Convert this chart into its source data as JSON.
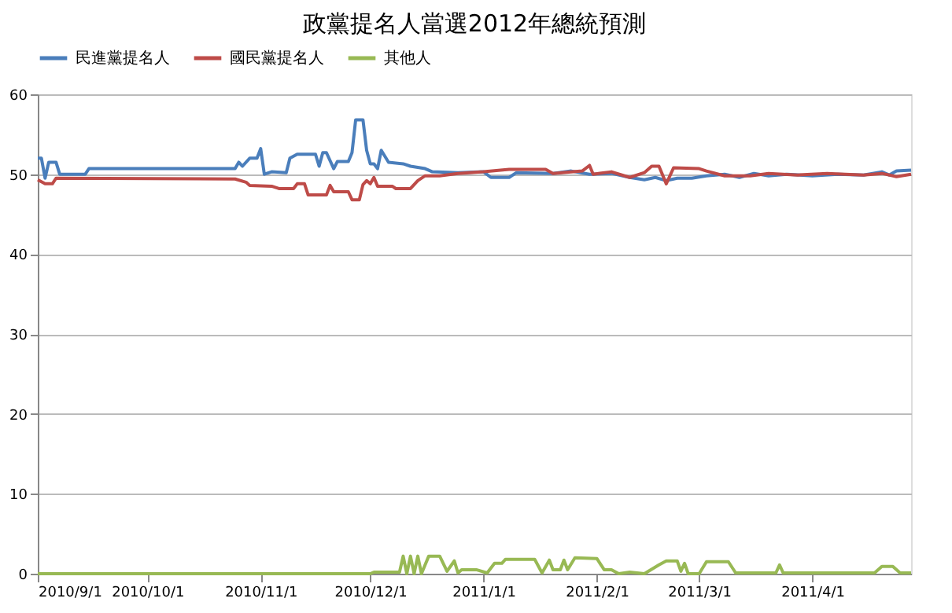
{
  "chart_data": {
    "type": "line",
    "title": "政黨提名人當選2012年總統預測",
    "xlim": [
      "2010-09-01",
      "2011-04-28"
    ],
    "xticks": [
      {
        "value": "2010-09-01",
        "label": "2010/9/1"
      },
      {
        "value": "2010-10-01",
        "label": "2010/10/1"
      },
      {
        "value": "2010-11-01",
        "label": "2010/11/1"
      },
      {
        "value": "2010-12-01",
        "label": "2010/12/1"
      },
      {
        "value": "2011-01-01",
        "label": "2011/1/1"
      },
      {
        "value": "2011-02-01",
        "label": "2011/2/1"
      },
      {
        "value": "2011-03-01",
        "label": "2011/3/1"
      },
      {
        "value": "2011-04-01",
        "label": "2011/4/1"
      }
    ],
    "ylim": [
      0,
      60
    ],
    "yticks": [
      0,
      10,
      20,
      30,
      40,
      50,
      60
    ],
    "grid": "y",
    "legend": "top",
    "marker": "none",
    "line_style": "solid",
    "series": [
      {
        "name": "民進黨提名人",
        "color": "#4a7ebb",
        "x": [
          "2010-09-01",
          "2010-09-02",
          "2010-09-03",
          "2010-09-04",
          "2010-09-06",
          "2010-09-07",
          "2010-09-14",
          "2010-09-15",
          "2010-10-25",
          "2010-10-26",
          "2010-10-27",
          "2010-10-29",
          "2010-10-31",
          "2010-11-01",
          "2010-11-02",
          "2010-11-04",
          "2010-11-08",
          "2010-11-09",
          "2010-11-11",
          "2010-11-16",
          "2010-11-17",
          "2010-11-18",
          "2010-11-19",
          "2010-11-21",
          "2010-11-22",
          "2010-11-25",
          "2010-11-26",
          "2010-11-27",
          "2010-11-29",
          "2010-11-30",
          "2010-12-01",
          "2010-12-02",
          "2010-12-03",
          "2010-12-04",
          "2010-12-06",
          "2010-12-10",
          "2010-12-12",
          "2010-12-16",
          "2010-12-18",
          "2010-12-25",
          "2011-01-01",
          "2011-01-03",
          "2011-01-08",
          "2011-01-10",
          "2011-01-20",
          "2011-01-25",
          "2011-01-30",
          "2011-02-05",
          "2011-02-10",
          "2011-02-14",
          "2011-02-17",
          "2011-02-20",
          "2011-02-23",
          "2011-02-27",
          "2011-03-03",
          "2011-03-08",
          "2011-03-12",
          "2011-03-16",
          "2011-03-20",
          "2011-03-25",
          "2011-04-01",
          "2011-04-08",
          "2011-04-15",
          "2011-04-20",
          "2011-04-22",
          "2011-04-24",
          "2011-04-28"
        ],
        "values": [
          52,
          52,
          49.5,
          51.5,
          51.5,
          50,
          50,
          50.7,
          50.7,
          51.5,
          51,
          52,
          52,
          53.2,
          50,
          50.3,
          50.2,
          52,
          52.5,
          52.5,
          51,
          52.7,
          52.7,
          50.7,
          51.6,
          51.6,
          52.7,
          56.8,
          56.8,
          53,
          51.3,
          51.3,
          50.7,
          53,
          51.5,
          51.3,
          51,
          50.7,
          50.3,
          50.2,
          50.3,
          49.6,
          49.6,
          50.2,
          50.1,
          50.4,
          50,
          50.1,
          49.6,
          49.3,
          49.6,
          49.2,
          49.5,
          49.5,
          49.8,
          50,
          49.6,
          50.1,
          49.8,
          50,
          49.8,
          50,
          49.9,
          50.3,
          49.9,
          50.4,
          50.5
        ]
      },
      {
        "name": "國民黨提名人",
        "color": "#be4b48",
        "x": [
          "2010-09-01",
          "2010-09-03",
          "2010-09-05",
          "2010-09-06",
          "2010-10-25",
          "2010-10-28",
          "2010-10-29",
          "2010-11-04",
          "2010-11-06",
          "2010-11-10",
          "2010-11-11",
          "2010-11-13",
          "2010-11-14",
          "2010-11-19",
          "2010-11-20",
          "2010-11-21",
          "2010-11-25",
          "2010-11-26",
          "2010-11-28",
          "2010-11-29",
          "2010-11-30",
          "2010-12-01",
          "2010-12-02",
          "2010-12-03",
          "2010-12-07",
          "2010-12-08",
          "2010-12-12",
          "2010-12-14",
          "2010-12-16",
          "2010-12-20",
          "2010-12-25",
          "2011-01-01",
          "2011-01-08",
          "2011-01-18",
          "2011-01-20",
          "2011-01-28",
          "2011-01-30",
          "2011-01-31",
          "2011-02-05",
          "2011-02-10",
          "2011-02-14",
          "2011-02-16",
          "2011-02-18",
          "2011-02-20",
          "2011-02-22",
          "2011-03-01",
          "2011-03-03",
          "2011-03-08",
          "2011-03-15",
          "2011-03-20",
          "2011-03-28",
          "2011-04-05",
          "2011-04-15",
          "2011-04-20",
          "2011-04-24",
          "2011-04-28"
        ],
        "values": [
          49.3,
          48.8,
          48.8,
          49.5,
          49.4,
          49,
          48.6,
          48.5,
          48.2,
          48.2,
          48.8,
          48.8,
          47.4,
          47.4,
          48.6,
          47.8,
          47.8,
          46.8,
          46.8,
          48.7,
          49.2,
          48.8,
          49.6,
          48.5,
          48.5,
          48.2,
          48.2,
          49.2,
          49.8,
          49.8,
          50.1,
          50.3,
          50.6,
          50.6,
          50.1,
          50.4,
          51.1,
          50,
          50.3,
          49.6,
          50.2,
          51,
          51,
          48.8,
          50.8,
          50.7,
          50.4,
          49.8,
          49.8,
          50.1,
          49.9,
          50.1,
          49.9,
          50.1,
          49.7,
          50
        ]
      },
      {
        "name": "其他人",
        "color": "#98b954",
        "x": [
          "2010-09-01",
          "2010-12-01",
          "2010-12-02",
          "2010-12-09",
          "2010-12-10",
          "2010-12-11",
          "2010-12-12",
          "2010-12-13",
          "2010-12-14",
          "2010-12-15",
          "2010-12-17",
          "2010-12-20",
          "2010-12-22",
          "2010-12-24",
          "2010-12-25",
          "2010-12-26",
          "2010-12-30",
          "2011-01-02",
          "2011-01-04",
          "2011-01-06",
          "2011-01-07",
          "2011-01-15",
          "2011-01-17",
          "2011-01-19",
          "2011-01-20",
          "2011-01-22",
          "2011-01-23",
          "2011-01-24",
          "2011-01-26",
          "2011-02-01",
          "2011-02-03",
          "2011-02-05",
          "2011-02-07",
          "2011-02-10",
          "2011-02-14",
          "2011-02-18",
          "2011-02-20",
          "2011-02-23",
          "2011-02-24",
          "2011-02-25",
          "2011-02-26",
          "2011-03-01",
          "2011-03-03",
          "2011-03-09",
          "2011-03-11",
          "2011-03-22",
          "2011-03-23",
          "2011-03-24",
          "2011-04-18",
          "2011-04-20",
          "2011-04-23",
          "2011-04-25",
          "2011-04-28"
        ],
        "values": [
          0,
          0,
          0.2,
          0.2,
          2.2,
          0,
          2.2,
          0,
          2.2,
          0,
          2.2,
          2.2,
          0.3,
          1.6,
          0.1,
          0.5,
          0.5,
          0.1,
          1.3,
          1.3,
          1.8,
          1.8,
          0.1,
          1.7,
          0.5,
          0.5,
          1.7,
          0.5,
          2,
          1.9,
          0.5,
          0.5,
          0,
          0.2,
          0,
          1.1,
          1.6,
          1.6,
          0.3,
          1.3,
          0,
          0,
          1.5,
          1.5,
          0.1,
          0.1,
          1.1,
          0.1,
          0.1,
          0.9,
          0.9,
          0.1,
          0.1
        ]
      }
    ]
  }
}
